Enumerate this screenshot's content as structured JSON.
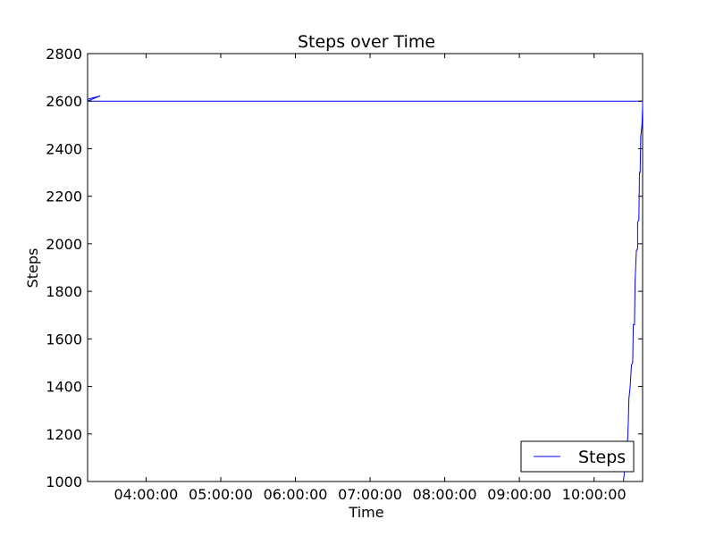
{
  "chart_data": {
    "type": "line",
    "title": "Steps over Time",
    "xlabel": "Time",
    "ylabel": "Steps",
    "xlim": [
      "03:13:00",
      "10:39:00"
    ],
    "ylim": [
      1000,
      2800
    ],
    "yticks": [
      1000,
      1200,
      1400,
      1600,
      1800,
      2000,
      2200,
      2400,
      2600,
      2800
    ],
    "xticks": [
      "04:00:00",
      "05:00:00",
      "06:00:00",
      "07:00:00",
      "08:00:00",
      "09:00:00",
      "10:00:00"
    ],
    "grid": false,
    "legend_position": "lower-right",
    "colors": {
      "line": "#0000ff",
      "axes": "#000000",
      "background": "#ffffff"
    },
    "series": [
      {
        "name": "Steps",
        "points": [
          [
            "03:13:00",
            2608
          ],
          [
            "03:23:00",
            2622
          ],
          [
            "03:13:00",
            2600
          ],
          [
            "10:39:00",
            2600
          ],
          [
            "10:39:00",
            2575
          ],
          [
            "10:38:30",
            2500
          ],
          [
            "10:37:30",
            2450
          ],
          [
            "10:37:00",
            2300
          ],
          [
            "10:36:30",
            2300
          ],
          [
            "10:36:00",
            2100
          ],
          [
            "10:35:00",
            2090
          ],
          [
            "10:35:00",
            1980
          ],
          [
            "10:34:00",
            1970
          ],
          [
            "10:33:00",
            1840
          ],
          [
            "10:32:30",
            1660
          ],
          [
            "10:31:30",
            1660
          ],
          [
            "10:31:00",
            1500
          ],
          [
            "10:30:00",
            1490
          ],
          [
            "10:29:00",
            1400
          ],
          [
            "10:28:00",
            1350
          ],
          [
            "10:27:30",
            1250
          ],
          [
            "10:27:00",
            1180
          ],
          [
            "10:26:00",
            1140
          ],
          [
            "10:25:00",
            1080
          ],
          [
            "10:24:00",
            1020
          ],
          [
            "10:23:30",
            1000
          ]
        ]
      }
    ]
  }
}
